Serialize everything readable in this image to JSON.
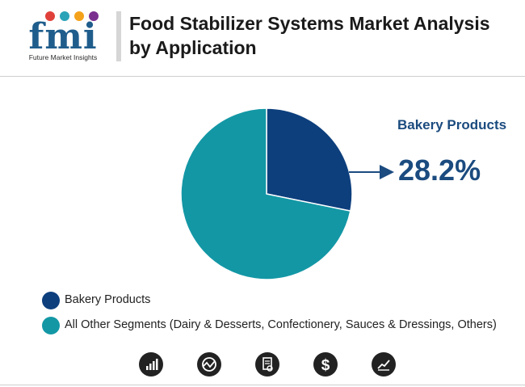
{
  "header": {
    "logo_text": "fmi",
    "logo_tagline": "Future Market Insights",
    "title": "Food Stabilizer Systems Market Analysis by Application"
  },
  "colors": {
    "bakery": "#0d3f7d",
    "other": "#1397a5",
    "accent": "#1b4b7f"
  },
  "callout": {
    "label": "Bakery Products",
    "value": "28.2%"
  },
  "chart_data": {
    "type": "pie",
    "title": "Food Stabilizer Systems Market Analysis by Application",
    "slices": [
      {
        "label": "Bakery Products",
        "value": 28.2
      },
      {
        "label": "All Other Segments (Dairy & Desserts, Confectionery, Sauces & Dressings, Others)",
        "value": 71.8
      }
    ],
    "legend_position": "bottom-left"
  },
  "legend": [
    {
      "label": "Bakery Products"
    },
    {
      "label": "All Other Segments (Dairy & Desserts, Confectionery, Sauces & Dressings, Others)"
    }
  ],
  "footer_icons": [
    "bar-chart-icon",
    "globe-icon",
    "document-icon",
    "dollar-icon",
    "trend-chart-icon"
  ]
}
